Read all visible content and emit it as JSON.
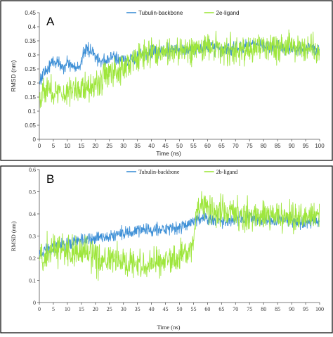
{
  "colors": {
    "backbone": "#3d8fd6",
    "ligand": "#9ee63c",
    "frame": "#000000",
    "axis": "#555555"
  },
  "chart_data": [
    {
      "type": "line",
      "panel_label": "A",
      "xlabel": "Time (ns)",
      "ylabel": "RMSD (nm)",
      "xlim": [
        0,
        100
      ],
      "ylim": [
        0,
        0.45
      ],
      "x_ticks": [
        "0",
        "5",
        "10",
        "15",
        "20",
        "25",
        "30",
        "35",
        "40",
        "45",
        "50",
        "55",
        "60",
        "65",
        "70",
        "75",
        "80",
        "85",
        "90",
        "95",
        "100"
      ],
      "y_ticks": [
        "0",
        "0.05",
        "0.1",
        "0.15",
        "0.2",
        "0.25",
        "0.3",
        "0.35",
        "0.4",
        "0.45"
      ],
      "grid": false,
      "legend_position": "top-center",
      "series": [
        {
          "name": "Tubulin-backbone",
          "color": "#3d8fd6",
          "x": [
            0,
            1,
            3,
            5,
            7,
            9,
            10,
            12,
            14,
            15,
            16,
            17,
            18,
            19,
            20,
            22,
            24,
            26,
            28,
            30,
            32,
            34,
            36,
            38,
            40,
            45,
            50,
            55,
            60,
            65,
            70,
            75,
            80,
            85,
            90,
            95,
            100
          ],
          "y": [
            0.2,
            0.23,
            0.25,
            0.28,
            0.27,
            0.26,
            0.27,
            0.26,
            0.25,
            0.28,
            0.31,
            0.32,
            0.32,
            0.31,
            0.29,
            0.28,
            0.28,
            0.29,
            0.29,
            0.28,
            0.28,
            0.29,
            0.3,
            0.3,
            0.31,
            0.31,
            0.32,
            0.32,
            0.33,
            0.32,
            0.32,
            0.33,
            0.33,
            0.33,
            0.32,
            0.32,
            0.32
          ],
          "noise": 0.012
        },
        {
          "name": "2e-ligand",
          "color": "#9ee63c",
          "x": [
            0,
            1,
            3,
            5,
            8,
            10,
            12,
            15,
            18,
            20,
            22,
            25,
            28,
            30,
            32,
            34,
            36,
            38,
            40,
            42,
            45,
            50,
            55,
            60,
            65,
            70,
            75,
            80,
            85,
            90,
            95,
            100
          ],
          "y": [
            0.15,
            0.17,
            0.18,
            0.17,
            0.16,
            0.17,
            0.18,
            0.18,
            0.19,
            0.2,
            0.21,
            0.23,
            0.25,
            0.26,
            0.27,
            0.28,
            0.29,
            0.3,
            0.31,
            0.31,
            0.31,
            0.31,
            0.32,
            0.33,
            0.32,
            0.31,
            0.32,
            0.33,
            0.33,
            0.33,
            0.33,
            0.32
          ],
          "noise": 0.025
        }
      ]
    },
    {
      "type": "line",
      "panel_label": "B",
      "xlabel": "Time (ns)",
      "ylabel": "RMSD (nm)",
      "xlim": [
        0,
        100
      ],
      "ylim": [
        0,
        0.6
      ],
      "x_ticks": [
        "0",
        "5",
        "10",
        "15",
        "20",
        "25",
        "30",
        "35",
        "40",
        "45",
        "50",
        "55",
        "60",
        "65",
        "70",
        "75",
        "80",
        "85",
        "90",
        "95",
        "100"
      ],
      "y_ticks": [
        "0",
        "0.1",
        "0.2",
        "0.3",
        "0.4",
        "0.5",
        "0.6"
      ],
      "grid": false,
      "legend_position": "top-center",
      "series": [
        {
          "name": "Tubulin-backbone",
          "color": "#3d8fd6",
          "x": [
            0,
            2,
            5,
            8,
            10,
            12,
            15,
            18,
            20,
            25,
            30,
            35,
            40,
            45,
            50,
            53,
            55,
            57,
            60,
            65,
            70,
            75,
            80,
            85,
            90,
            95,
            100
          ],
          "y": [
            0.22,
            0.24,
            0.25,
            0.26,
            0.26,
            0.27,
            0.28,
            0.28,
            0.29,
            0.3,
            0.31,
            0.32,
            0.33,
            0.33,
            0.34,
            0.35,
            0.37,
            0.38,
            0.38,
            0.37,
            0.37,
            0.38,
            0.37,
            0.37,
            0.37,
            0.36,
            0.37
          ],
          "noise": 0.015
        },
        {
          "name": "2b-ligand",
          "color": "#9ee63c",
          "x": [
            0,
            2,
            4,
            6,
            8,
            10,
            12,
            15,
            18,
            20,
            22,
            25,
            28,
            30,
            35,
            40,
            45,
            50,
            53,
            55,
            56,
            58,
            60,
            65,
            70,
            75,
            80,
            85,
            90,
            95,
            100
          ],
          "y": [
            0.2,
            0.22,
            0.24,
            0.25,
            0.24,
            0.23,
            0.22,
            0.22,
            0.22,
            0.2,
            0.19,
            0.19,
            0.19,
            0.18,
            0.18,
            0.18,
            0.19,
            0.2,
            0.23,
            0.27,
            0.42,
            0.44,
            0.43,
            0.41,
            0.4,
            0.39,
            0.4,
            0.38,
            0.38,
            0.39,
            0.39
          ],
          "noise": 0.035
        }
      ]
    }
  ]
}
